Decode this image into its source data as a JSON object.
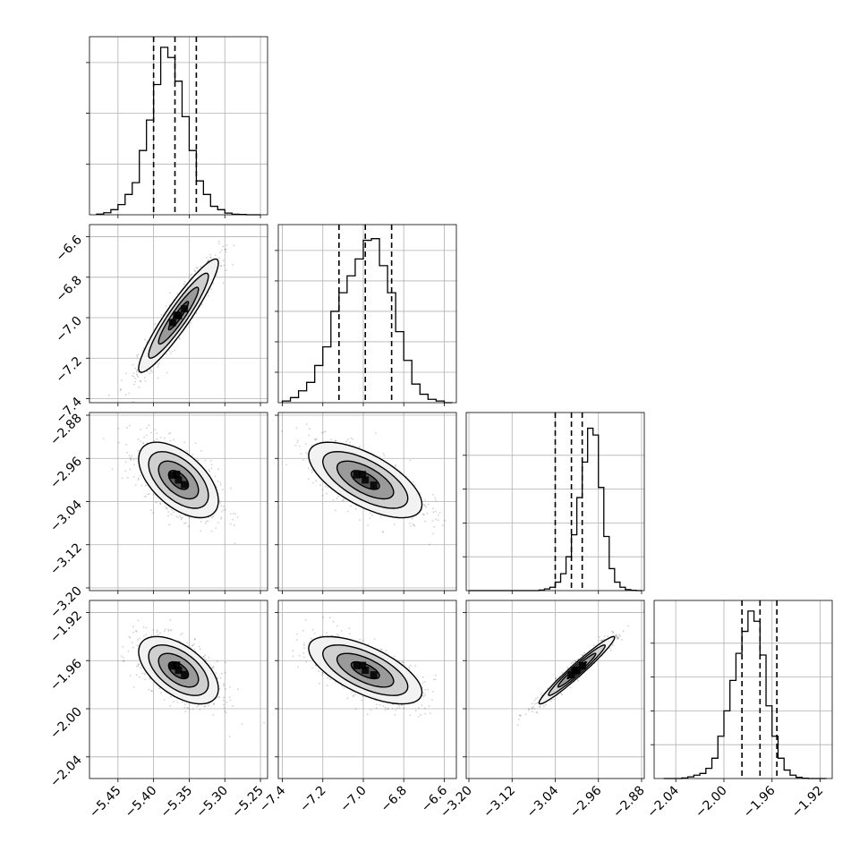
{
  "chart_data": {
    "type": "corner",
    "grid": true,
    "parameters": [
      {
        "range": [
          -5.49,
          -5.24
        ],
        "ticks": [
          -5.45,
          -5.4,
          -5.35,
          -5.3,
          -5.25
        ],
        "tick_labels": [
          "−5.45",
          "−5.40",
          "−5.35",
          "−5.30",
          "−5.25"
        ],
        "quantiles": [
          -5.4,
          -5.37,
          -5.34
        ],
        "hist_max": 1.0,
        "hist_ticks": [
          0.3,
          0.6,
          0.9
        ],
        "histogram": {
          "bins": [
            -5.48,
            -5.47,
            -5.46,
            -5.45,
            -5.44,
            -5.43,
            -5.42,
            -5.41,
            -5.4,
            -5.39,
            -5.38,
            -5.37,
            -5.36,
            -5.35,
            -5.34,
            -5.33,
            -5.32,
            -5.31,
            -5.3,
            -5.29,
            -5.28,
            -5.27,
            -5.26,
            -5.25
          ],
          "counts": [
            0.004,
            0.012,
            0.03,
            0.06,
            0.12,
            0.19,
            0.38,
            0.56,
            0.77,
            0.99,
            0.93,
            0.79,
            0.58,
            0.38,
            0.2,
            0.12,
            0.05,
            0.03,
            0.01,
            0.003,
            0.002,
            0,
            0
          ]
        }
      },
      {
        "range": [
          -7.42,
          -6.54
        ],
        "ticks": [
          -7.4,
          -7.2,
          -7.0,
          -6.8,
          -6.6
        ],
        "tick_labels": [
          "−7.4",
          "−7.2",
          "−7.0",
          "−6.8",
          "−6.6"
        ],
        "quantiles": [
          -7.12,
          -6.99,
          -6.86
        ],
        "hist_max": 1.0,
        "hist_ticks": [
          0.18,
          0.36,
          0.54,
          0.72,
          0.9
        ],
        "histogram": {
          "bins": [
            -7.4,
            -7.36,
            -7.32,
            -7.28,
            -7.24,
            -7.2,
            -7.16,
            -7.12,
            -7.08,
            -7.04,
            -7.0,
            -6.96,
            -6.92,
            -6.88,
            -6.84,
            -6.8,
            -6.76,
            -6.72,
            -6.68,
            -6.64,
            -6.6,
            -6.56
          ],
          "counts": [
            0.01,
            0.03,
            0.07,
            0.12,
            0.22,
            0.33,
            0.54,
            0.65,
            0.75,
            0.85,
            0.96,
            0.97,
            0.81,
            0.65,
            0.42,
            0.25,
            0.11,
            0.05,
            0.02,
            0.01,
            0.0
          ]
        }
      },
      {
        "range": [
          -3.205,
          -2.875
        ],
        "ticks": [
          -3.2,
          -3.12,
          -3.04,
          -2.96,
          -2.88
        ],
        "tick_labels": [
          "−3.20",
          "−3.12",
          "−3.04",
          "−2.96",
          "−2.88"
        ],
        "quantiles": [
          -3.04,
          -3.01,
          -2.99
        ],
        "hist_max": 1.0,
        "hist_ticks": [
          0.2,
          0.4,
          0.6,
          0.8
        ],
        "histogram": {
          "bins": [
            -3.2,
            -3.19,
            -3.18,
            -3.17,
            -3.16,
            -3.15,
            -3.14,
            -3.13,
            -3.12,
            -3.11,
            -3.1,
            -3.09,
            -3.08,
            -3.07,
            -3.06,
            -3.05,
            -3.04,
            -3.03,
            -3.02,
            -3.01,
            -3.0,
            -2.99,
            -2.98,
            -2.97,
            -2.96,
            -2.95,
            -2.94,
            -2.93,
            -2.92,
            -2.91,
            -2.9,
            -2.89,
            -2.88
          ],
          "counts": [
            0,
            0,
            0,
            0,
            0,
            0,
            0,
            0,
            0,
            0,
            0,
            0,
            0,
            0.003,
            0.01,
            0.02,
            0.05,
            0.1,
            0.2,
            0.33,
            0.55,
            0.76,
            0.96,
            0.92,
            0.61,
            0.32,
            0.13,
            0.05,
            0.02,
            0.006,
            0.002,
            0
          ]
        }
      },
      {
        "range": [
          -2.058,
          -1.91
        ],
        "ticks": [
          -2.04,
          -2.0,
          -1.96,
          -1.92
        ],
        "tick_labels": [
          "−2.04",
          "−2.00",
          "−1.96",
          "−1.92"
        ],
        "quantiles": [
          -1.985,
          -1.97,
          -1.956
        ],
        "hist_max": 1.0,
        "hist_ticks": [
          0.2,
          0.4,
          0.6,
          0.8
        ],
        "histogram": {
          "bins": [
            -2.05,
            -2.045,
            -2.04,
            -2.035,
            -2.03,
            -2.025,
            -2.02,
            -2.015,
            -2.01,
            -2.005,
            -2.0,
            -1.995,
            -1.99,
            -1.985,
            -1.98,
            -1.975,
            -1.97,
            -1.965,
            -1.96,
            -1.955,
            -1.95,
            -1.945,
            -1.94,
            -1.935,
            -1.93,
            -1.925,
            -1.92,
            -1.915
          ],
          "counts": [
            0,
            0,
            0,
            0.003,
            0.01,
            0.02,
            0.03,
            0.06,
            0.12,
            0.25,
            0.4,
            0.58,
            0.74,
            0.87,
            0.99,
            0.93,
            0.73,
            0.43,
            0.25,
            0.12,
            0.05,
            0.02,
            0.007,
            0.002,
            0,
            0,
            0
          ]
        }
      }
    ],
    "pairs": [
      {
        "row": 1,
        "col": 0,
        "center": [
          -5.365,
          -6.99
        ],
        "sigma": [
          0.028,
          0.14
        ],
        "rho": 0.93
      },
      {
        "row": 2,
        "col": 0,
        "center": [
          -5.365,
          -3.0
        ],
        "sigma": [
          0.028,
          0.035
        ],
        "rho": -0.55
      },
      {
        "row": 2,
        "col": 1,
        "center": [
          -6.99,
          -3.0
        ],
        "sigma": [
          0.14,
          0.035
        ],
        "rho": -0.65
      },
      {
        "row": 3,
        "col": 0,
        "center": [
          -5.365,
          -1.968
        ],
        "sigma": [
          0.028,
          0.014
        ],
        "rho": -0.55
      },
      {
        "row": 3,
        "col": 1,
        "center": [
          -6.99,
          -1.968
        ],
        "sigma": [
          0.14,
          0.014
        ],
        "rho": -0.65
      },
      {
        "row": 3,
        "col": 2,
        "center": [
          -3.0,
          -1.968
        ],
        "sigma": [
          0.035,
          0.014
        ],
        "rho": 0.97
      }
    ],
    "contour_levels_sigma": [
      0.5,
      1.0,
      1.5,
      2.0
    ]
  }
}
